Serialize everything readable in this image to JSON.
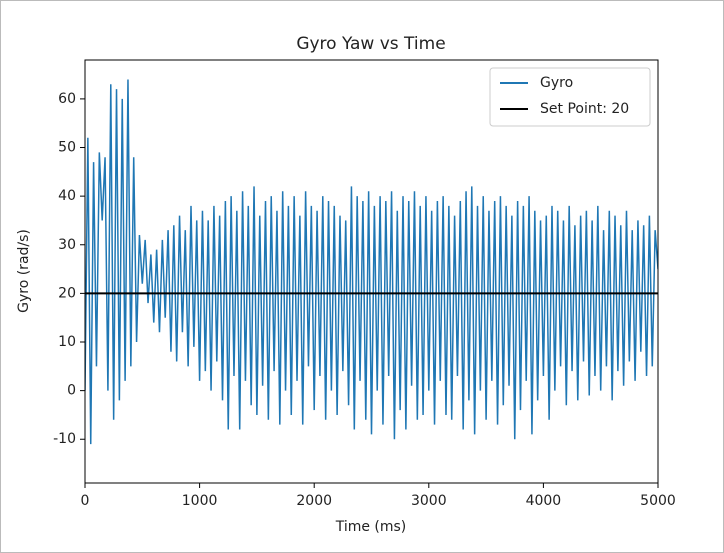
{
  "chart_data": {
    "type": "line",
    "title": "Gyro Yaw vs Time",
    "x_label": "Time (ms)",
    "y_label": "Gyro (rad/s)",
    "xlim": [
      0,
      5000
    ],
    "ylim": [
      -19,
      68
    ],
    "xticks": [
      0,
      1000,
      2000,
      3000,
      4000,
      5000
    ],
    "yticks": [
      -10,
      0,
      10,
      20,
      30,
      40,
      50,
      60
    ],
    "legend": "upper right",
    "series": [
      {
        "name": "Gyro",
        "color": "#1f77b4",
        "x": [
          0,
          25,
          50,
          75,
          100,
          125,
          150,
          175,
          200,
          225,
          250,
          275,
          300,
          325,
          350,
          375,
          400,
          425,
          450,
          475,
          500,
          525,
          550,
          575,
          600,
          625,
          650,
          675,
          700,
          725,
          750,
          775,
          800,
          825,
          850,
          875,
          900,
          925,
          950,
          975,
          1000,
          1025,
          1050,
          1075,
          1100,
          1125,
          1150,
          1175,
          1200,
          1225,
          1250,
          1275,
          1300,
          1325,
          1350,
          1375,
          1400,
          1425,
          1450,
          1475,
          1500,
          1525,
          1550,
          1575,
          1600,
          1625,
          1650,
          1675,
          1700,
          1725,
          1750,
          1775,
          1800,
          1825,
          1850,
          1875,
          1900,
          1925,
          1950,
          1975,
          2000,
          2025,
          2050,
          2075,
          2100,
          2125,
          2150,
          2175,
          2200,
          2225,
          2250,
          2275,
          2300,
          2325,
          2350,
          2375,
          2400,
          2425,
          2450,
          2475,
          2500,
          2525,
          2550,
          2575,
          2600,
          2625,
          2650,
          2675,
          2700,
          2725,
          2750,
          2775,
          2800,
          2825,
          2850,
          2875,
          2900,
          2925,
          2950,
          2975,
          3000,
          3025,
          3050,
          3075,
          3100,
          3125,
          3150,
          3175,
          3200,
          3225,
          3250,
          3275,
          3300,
          3325,
          3350,
          3375,
          3400,
          3425,
          3450,
          3475,
          3500,
          3525,
          3550,
          3575,
          3600,
          3625,
          3650,
          3675,
          3700,
          3725,
          3750,
          3775,
          3800,
          3825,
          3850,
          3875,
          3900,
          3925,
          3950,
          3975,
          4000,
          4025,
          4050,
          4075,
          4100,
          4125,
          4150,
          4175,
          4200,
          4225,
          4250,
          4275,
          4300,
          4325,
          4350,
          4375,
          4400,
          4425,
          4450,
          4475,
          4500,
          4525,
          4550,
          4575,
          4600,
          4625,
          4650,
          4675,
          4700,
          4725,
          4750,
          4775,
          4800,
          4825,
          4850,
          4875,
          4900,
          4925,
          4950,
          4975,
          5000
        ],
        "values": [
          0,
          52,
          -11,
          47,
          5,
          49,
          35,
          48,
          0,
          63,
          -6,
          62,
          -2,
          60,
          2,
          64,
          5,
          48,
          10,
          32,
          22,
          31,
          18,
          28,
          14,
          29,
          12,
          31,
          15,
          33,
          8,
          34,
          6,
          36,
          12,
          33,
          5,
          38,
          9,
          35,
          2,
          37,
          4,
          35,
          0,
          38,
          6,
          36,
          -2,
          39,
          -8,
          40,
          3,
          37,
          -8,
          41,
          2,
          38,
          -3,
          42,
          -5,
          36,
          1,
          39,
          -6,
          40,
          4,
          37,
          -7,
          41,
          0,
          38,
          -5,
          40,
          2,
          36,
          -7,
          41,
          5,
          38,
          -4,
          37,
          3,
          40,
          -6,
          39,
          0,
          38,
          -5,
          36,
          4,
          35,
          -3,
          42,
          -8,
          40,
          2,
          39,
          -6,
          41,
          -9,
          38,
          0,
          40,
          -7,
          39,
          3,
          41,
          -10,
          37,
          -4,
          40,
          -8,
          39,
          1,
          41,
          -6,
          38,
          -5,
          40,
          0,
          37,
          -7,
          39,
          2,
          40,
          -5,
          38,
          -6,
          36,
          3,
          39,
          -8,
          41,
          -2,
          42,
          -9,
          38,
          0,
          40,
          -6,
          37,
          2,
          39,
          -7,
          40,
          -3,
          38,
          1,
          36,
          -10,
          39,
          -4,
          38,
          2,
          40,
          -9,
          37,
          -2,
          35,
          3,
          36,
          -6,
          38,
          0,
          37,
          5,
          35,
          -3,
          38,
          4,
          34,
          -2,
          36,
          6,
          37,
          -1,
          35,
          3,
          38,
          0,
          33,
          5,
          37,
          -2,
          36,
          4,
          34,
          1,
          37,
          6,
          33,
          2,
          35,
          8,
          34,
          3,
          36,
          5,
          33,
          25
        ]
      },
      {
        "name": "Set Point: 20",
        "color": "#000000",
        "x": [
          0,
          5000
        ],
        "values": [
          20,
          20
        ]
      }
    ]
  }
}
